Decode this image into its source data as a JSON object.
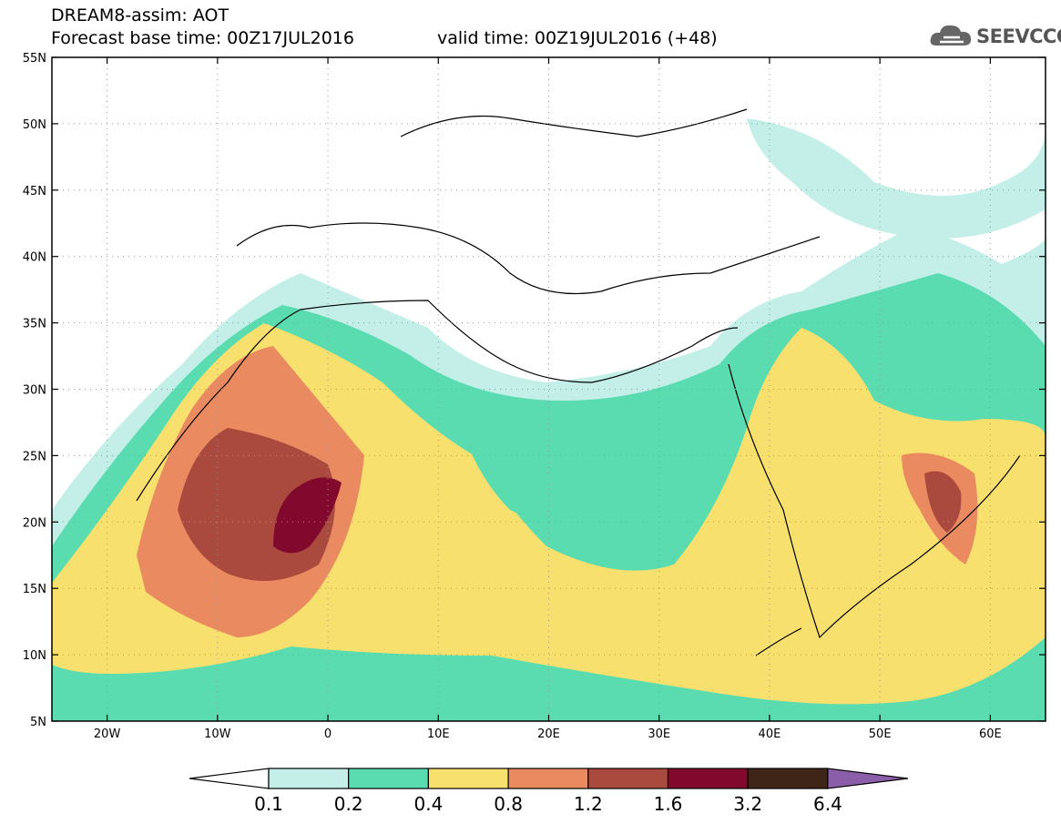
{
  "title": {
    "line1": "DREAM8-assim: AOT",
    "line2": "Forecast base time: 00Z17JUL2016",
    "valid": "valid time: 00Z19JUL2016 (+48)"
  },
  "logo": {
    "text": "SEEVCCC",
    "icon": "cloud-icon"
  },
  "map": {
    "lon_min": -25,
    "lon_max": 65,
    "lat_min": 5,
    "lat_max": 55,
    "lat_ticks": [
      {
        "value": 55,
        "label": "55N"
      },
      {
        "value": 50,
        "label": "50N"
      },
      {
        "value": 45,
        "label": "45N"
      },
      {
        "value": 40,
        "label": "40N"
      },
      {
        "value": 35,
        "label": "35N"
      },
      {
        "value": 30,
        "label": "30N"
      },
      {
        "value": 25,
        "label": "25N"
      },
      {
        "value": 20,
        "label": "20N"
      },
      {
        "value": 15,
        "label": "15N"
      },
      {
        "value": 10,
        "label": "10N"
      },
      {
        "value": 5,
        "label": "5N"
      }
    ],
    "lon_ticks": [
      {
        "value": -20,
        "label": "20W"
      },
      {
        "value": -10,
        "label": "10W"
      },
      {
        "value": 0,
        "label": "0"
      },
      {
        "value": 10,
        "label": "10E"
      },
      {
        "value": 20,
        "label": "20E"
      },
      {
        "value": 30,
        "label": "30E"
      },
      {
        "value": 40,
        "label": "40E"
      },
      {
        "value": 50,
        "label": "50E"
      },
      {
        "value": 60,
        "label": "60E"
      }
    ]
  },
  "colorbar": {
    "colors": [
      "#ffffff",
      "#c4efe9",
      "#5adcb0",
      "#f8e06e",
      "#e98a60",
      "#aa4a3e",
      "#82092e",
      "#3f2418",
      "#8a5ea8"
    ],
    "labels": [
      "0.1",
      "0.2",
      "0.4",
      "0.8",
      "1.2",
      "1.6",
      "3.2",
      "6.4"
    ]
  }
}
